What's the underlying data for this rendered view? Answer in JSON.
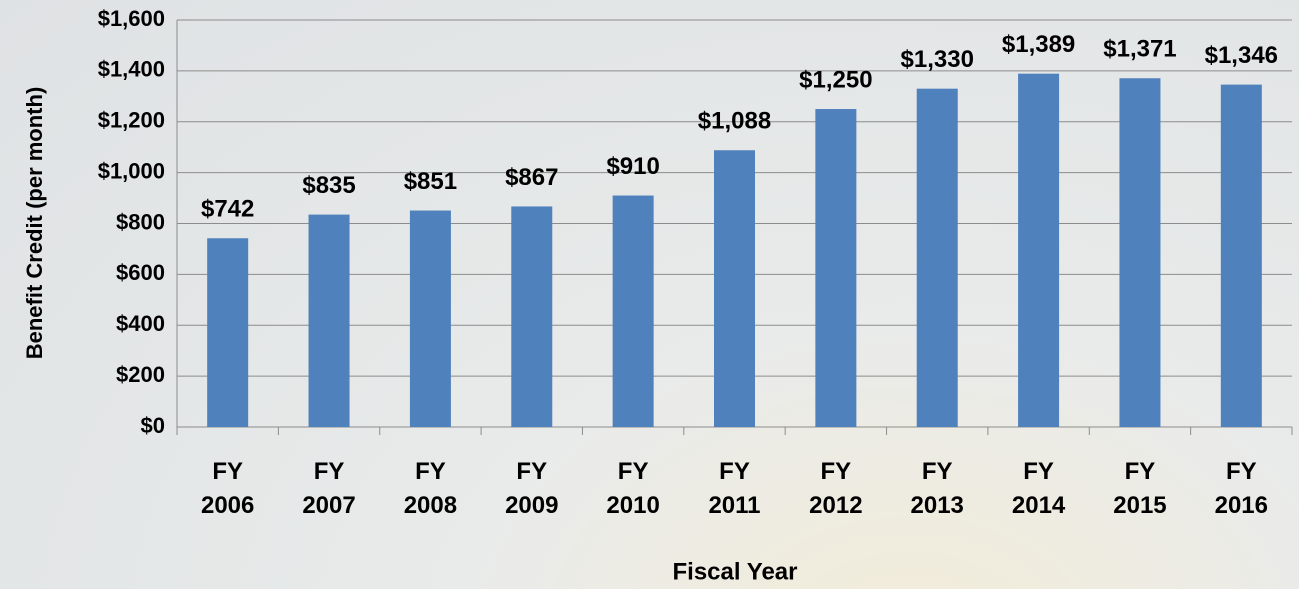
{
  "chart_data": {
    "type": "bar",
    "categories": [
      "FY 2006",
      "FY 2007",
      "FY 2008",
      "FY 2009",
      "FY 2010",
      "FY 2011",
      "FY 2012",
      "FY 2013",
      "FY 2014",
      "FY 2015",
      "FY 2016"
    ],
    "values": [
      742,
      835,
      851,
      867,
      910,
      1088,
      1250,
      1330,
      1389,
      1371,
      1346
    ],
    "value_labels": [
      "$742",
      "$835",
      "$851",
      "$867",
      "$910",
      "$1,088",
      "$1,250",
      "$1,330",
      "$1,389",
      "$1,371",
      "$1,346"
    ],
    "color": "#4f81bd",
    "x_label": "Fiscal Year",
    "y_label": "Benefit Credit (per month)",
    "ylim": [
      0,
      1600
    ],
    "yticks": [
      {
        "value": 0,
        "label": "$0"
      },
      {
        "value": 200,
        "label": "$200"
      },
      {
        "value": 400,
        "label": "$400"
      },
      {
        "value": 600,
        "label": "$600"
      },
      {
        "value": 800,
        "label": "$800"
      },
      {
        "value": 1000,
        "label": "$1,000"
      },
      {
        "value": 1200,
        "label": "$1,200"
      },
      {
        "value": 1400,
        "label": "$1,400"
      },
      {
        "value": 1600,
        "label": "$1,600"
      }
    ],
    "grid": true
  }
}
